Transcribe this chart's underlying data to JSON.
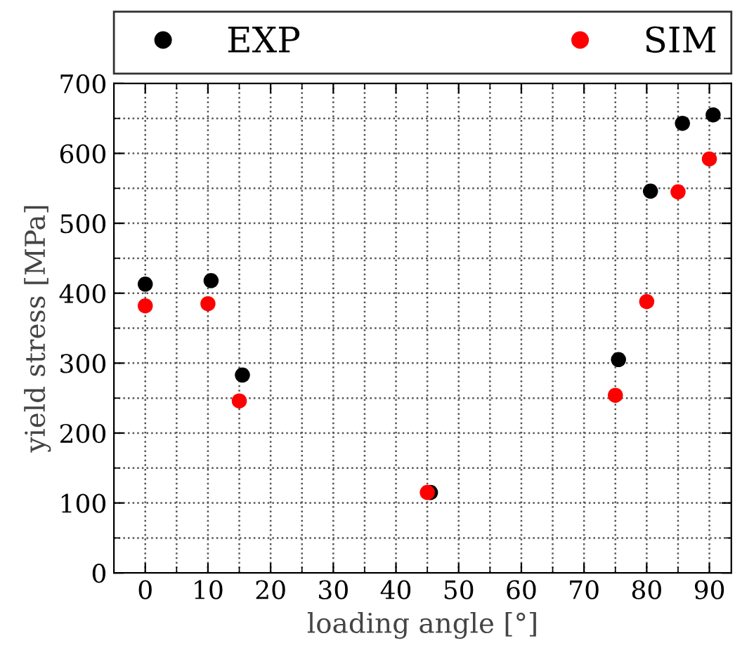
{
  "chart_data": {
    "type": "scatter",
    "xlabel": "loading angle [°]",
    "ylabel": "yield stress [MPa]",
    "xlim": [
      -5,
      93.5
    ],
    "ylim": [
      0,
      700
    ],
    "xticks": [
      0,
      10,
      20,
      30,
      40,
      50,
      60,
      70,
      80,
      90
    ],
    "yticks": [
      0,
      100,
      200,
      300,
      400,
      500,
      600,
      700
    ],
    "grid": true,
    "legend": "top",
    "marker": "circle",
    "series": [
      {
        "name": "EXP",
        "color": "#000000",
        "x": [
          0,
          10.5,
          15.5,
          45.5,
          75.5,
          80.6,
          85.7,
          90.6
        ],
        "values": [
          413,
          418,
          283,
          115,
          305,
          546,
          643,
          655
        ]
      },
      {
        "name": "SIM",
        "color": "#ff0000",
        "x": [
          0,
          10,
          15,
          45,
          75,
          80,
          85,
          90
        ],
        "values": [
          382,
          385,
          246,
          115,
          254,
          388,
          545,
          592
        ]
      }
    ]
  }
}
